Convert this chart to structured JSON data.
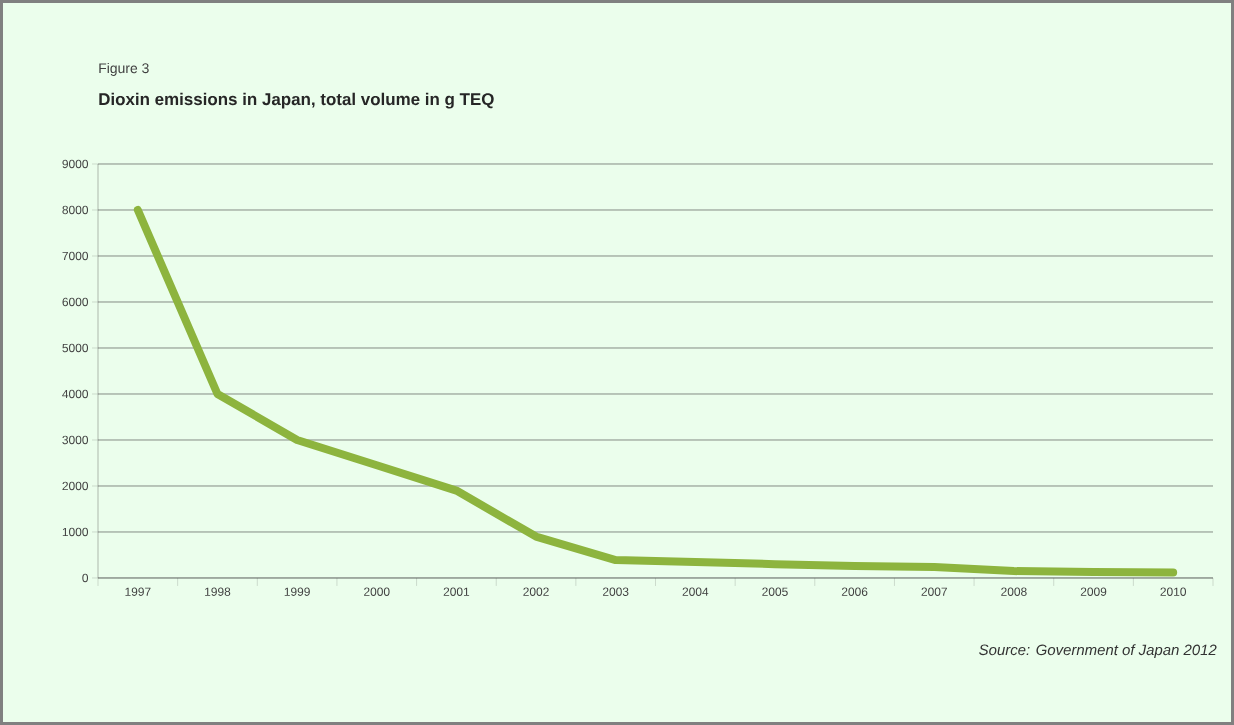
{
  "chart_data": {
    "type": "line",
    "title": "Dioxin emissions in Japan, total volume in g TEQ",
    "annotations": [
      "Figure 3",
      "Source: Government of Japan 2012"
    ],
    "categories": [
      "1997",
      "1998",
      "1999",
      "2000",
      "2001",
      "2002",
      "2003",
      "2004",
      "2005",
      "2006",
      "2007",
      "2008",
      "2009",
      "2010"
    ],
    "series": [
      {
        "color": "#8db43e",
        "values": [
          8000,
          4000,
          3000,
          2450,
          1900,
          900,
          390,
          350,
          300,
          260,
          240,
          150,
          130,
          120
        ]
      }
    ],
    "ylim": [
      0,
      9000
    ],
    "yticks": [
      0,
      1000,
      2000,
      3000,
      4000,
      5000,
      6000,
      7000,
      8000,
      9000
    ],
    "grid": "y",
    "marker": "none",
    "line_style": "solid"
  }
}
